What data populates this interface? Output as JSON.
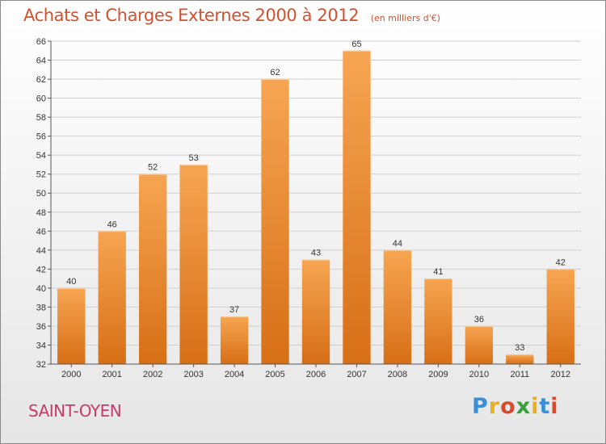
{
  "title": "Achats et Charges Externes 2000 à 2012",
  "subtitle": "(en milliers d'€)",
  "commune": "SAINT-OYEN",
  "logo": {
    "letters": [
      "P",
      "r",
      "o",
      "x",
      "i",
      "t",
      "i"
    ],
    "colors": [
      "#3a8fd8",
      "#e8b020",
      "#d84a2a",
      "#3aa03a",
      "#e8b020",
      "#3a8fd8",
      "#d84a2a"
    ]
  },
  "colors": {
    "bar_top": "#f7a552",
    "bar_bottom": "#d76f16",
    "title": "#d2522e",
    "commune": "#c93a6b"
  },
  "chart_data": {
    "type": "bar",
    "title": "Achats et Charges Externes 2000 à 2012",
    "subtitle": "(en milliers d'€)",
    "categories": [
      "2000",
      "2001",
      "2002",
      "2003",
      "2004",
      "2005",
      "2006",
      "2007",
      "2008",
      "2009",
      "2010",
      "2011",
      "2012"
    ],
    "values": [
      40,
      46,
      52,
      53,
      37,
      62,
      43,
      65,
      44,
      41,
      36,
      33,
      42
    ],
    "ylim": [
      32,
      66
    ],
    "yticks": [
      32,
      34,
      36,
      38,
      40,
      42,
      44,
      46,
      48,
      50,
      52,
      54,
      56,
      58,
      60,
      62,
      64,
      66
    ],
    "grid": true,
    "xlabel": "",
    "ylabel": ""
  }
}
